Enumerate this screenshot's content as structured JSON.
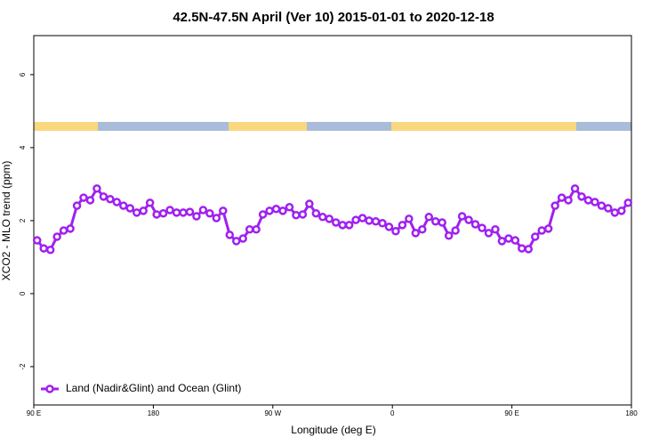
{
  "chart_data": {
    "type": "line",
    "title": "42.5N-47.5N April (Ver 10)   2015-01-01 to 2020-12-18",
    "x_label": "Longitude (deg E)",
    "y_label": "XCO2 - MLO trend (ppm)",
    "xlim": [
      90,
      540
    ],
    "ylim": [
      -3.05,
      7.07
    ],
    "xticks": [
      {
        "value": 90,
        "label": "90 E"
      },
      180,
      {
        "value": 270,
        "label": "90 W"
      },
      {
        "value": 360,
        "label": "0"
      },
      {
        "value": 450,
        "label": "90 E"
      },
      {
        "value": 540,
        "label": "180"
      }
    ],
    "yticks": [
      -2,
      0,
      2,
      4,
      6
    ],
    "legend": "bottom-left",
    "x": [
      92.5,
      97.5,
      102.5,
      107.5,
      112.5,
      117.5,
      122.5,
      127.5,
      132.5,
      137.5,
      142.5,
      147.5,
      152.5,
      157.5,
      162.5,
      167.5,
      172.5,
      177.5,
      182.5,
      187.5,
      192.5,
      197.5,
      202.5,
      207.5,
      212.5,
      217.5,
      222.5,
      227.5,
      232.5,
      237.5,
      242.5,
      247.5,
      252.5,
      257.5,
      262.5,
      267.5,
      272.5,
      277.5,
      282.5,
      287.5,
      292.5,
      297.5,
      302.5,
      307.5,
      312.5,
      317.5,
      322.5,
      327.5,
      332.5,
      337.5,
      342.5,
      347.5,
      352.5,
      357.5,
      362.5,
      367.5,
      372.5,
      377.5,
      382.5,
      387.5,
      392.5,
      397.5,
      402.5,
      407.5,
      412.5,
      417.5,
      422.5,
      427.5,
      432.5,
      437.5,
      442.5,
      447.5,
      452.5,
      457.5,
      462.5,
      467.5,
      472.5,
      477.5,
      482.5,
      487.5,
      492.5,
      497.5,
      502.5,
      507.5,
      512.5,
      517.5,
      522.5,
      527.5,
      532.5,
      537.5
    ],
    "series": [
      {
        "name": "Land (Nadir&Glint) and Ocean (Glint)",
        "color": "#a020f0",
        "values": [
          1.46,
          1.24,
          1.2,
          1.56,
          1.73,
          1.78,
          2.41,
          2.63,
          2.56,
          2.88,
          2.66,
          2.59,
          2.51,
          2.41,
          2.34,
          2.22,
          2.27,
          2.49,
          2.17,
          2.2,
          2.29,
          2.22,
          2.22,
          2.24,
          2.12,
          2.29,
          2.2,
          2.07,
          2.27,
          1.61,
          1.44,
          1.51,
          1.76,
          1.76,
          2.17,
          2.27,
          2.32,
          2.27,
          2.37,
          2.15,
          2.17,
          2.46,
          2.2,
          2.1,
          2.05,
          1.95,
          1.88,
          1.88,
          2.02,
          2.07,
          2.0,
          1.98,
          1.93,
          1.83,
          1.71,
          1.88,
          2.05,
          1.66,
          1.76,
          2.1,
          1.98,
          1.95,
          1.59,
          1.73,
          2.12,
          2.02,
          1.9,
          1.8,
          1.66,
          1.76,
          1.44,
          1.51,
          1.46,
          1.24,
          1.22,
          1.56,
          1.73,
          1.78,
          2.41,
          2.63,
          2.56,
          2.88,
          2.66,
          2.56,
          2.51,
          2.41,
          2.34,
          2.22,
          2.27,
          2.49
        ]
      }
    ]
  }
}
